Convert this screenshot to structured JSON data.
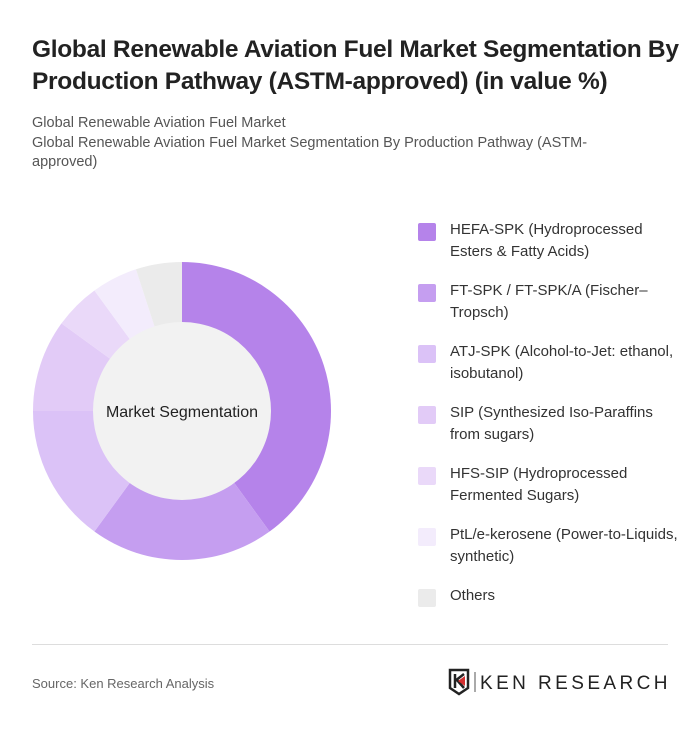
{
  "title": "Global Renewable Aviation Fuel Market Segmentation By Production Pathway (ASTM-approved) (in value %)",
  "subtitle1": "Global Renewable Aviation Fuel Market",
  "subtitle2": "Global Renewable Aviation Fuel Market Segmentation By Production Pathway (ASTM-approved)",
  "source": "Source: Ken Research Analysis",
  "logo_text": "KEN RESEARCH",
  "chart_data": {
    "type": "pie",
    "donut": true,
    "center_label": "Market Segmentation",
    "legend_position": "right",
    "categories": [
      "HEFA-SPK (Hydroprocessed Esters & Fatty Acids)",
      "FT-SPK / FT-SPK/A (Fischer–Tropsch)",
      "ATJ-SPK (Alcohol-to-Jet: ethanol, isobutanol)",
      "SIP (Synthesized Iso-Paraffins from sugars)",
      "HFS-SIP (Hydroprocessed Fermented Sugars)",
      "PtL/e-kerosene (Power-to-Liquids, synthetic)",
      "Others"
    ],
    "values": [
      40,
      20,
      15,
      10,
      5,
      5,
      5
    ],
    "colors": [
      "#b583ea",
      "#c59ef0",
      "#dbc2f7",
      "#e2cbf7",
      "#ead9f9",
      "#f3ecfc",
      "#ebebeb"
    ]
  }
}
